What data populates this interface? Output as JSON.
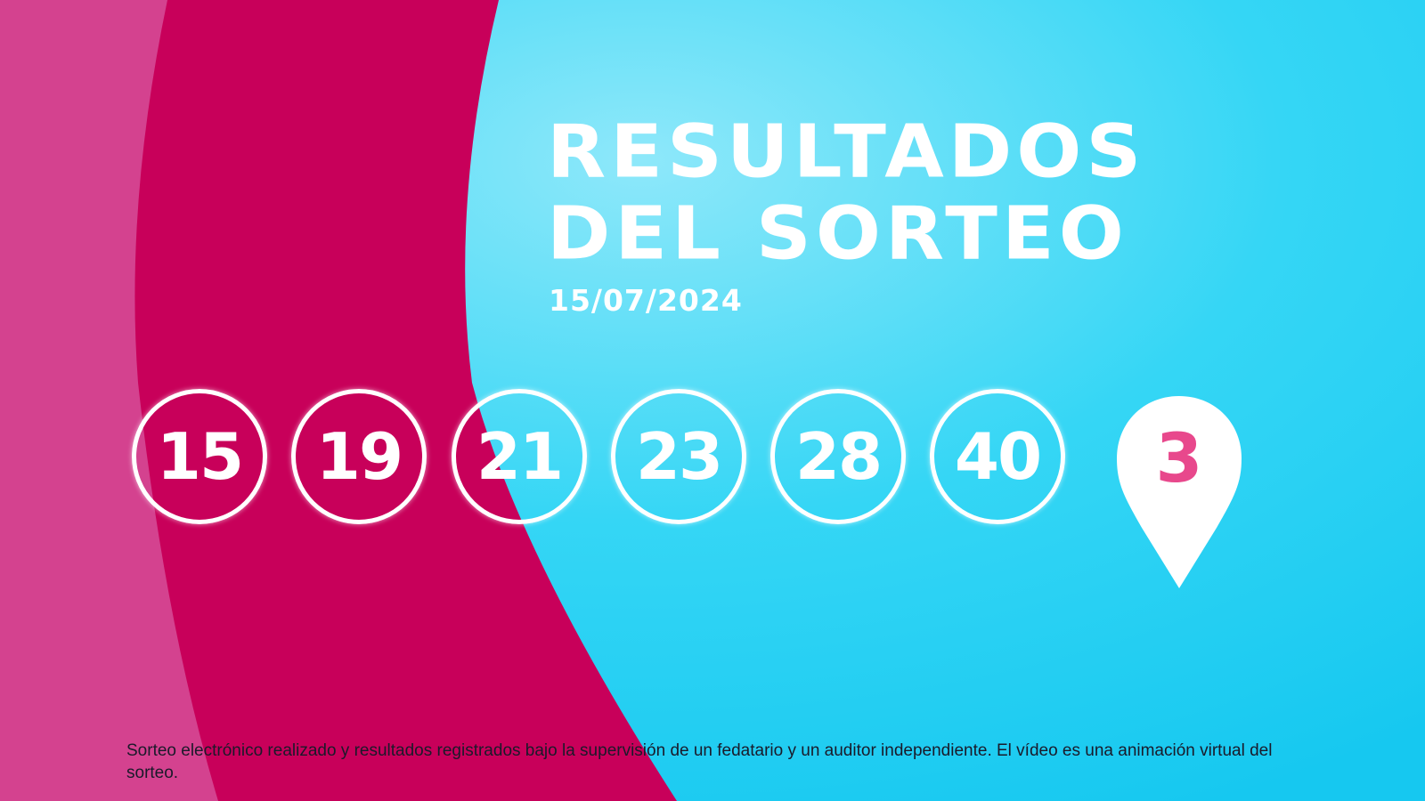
{
  "title_line1": "RESULTADOS",
  "title_line2": "DEL SORTEO",
  "date": "15/07/2024",
  "numbers": [
    "15",
    "19",
    "21",
    "23",
    "28",
    "40"
  ],
  "special_number": "3",
  "disclaimer": "Sorteo electrónico realizado y resultados registrados bajo la supervisión de un fedatario y un auditor independiente. El vídeo es una animación virtual del sorteo.",
  "colors": {
    "pink": "#d4428f",
    "crimson": "#c8005a",
    "cyan": "#1ccdf2",
    "special_number": "#e8488c"
  }
}
